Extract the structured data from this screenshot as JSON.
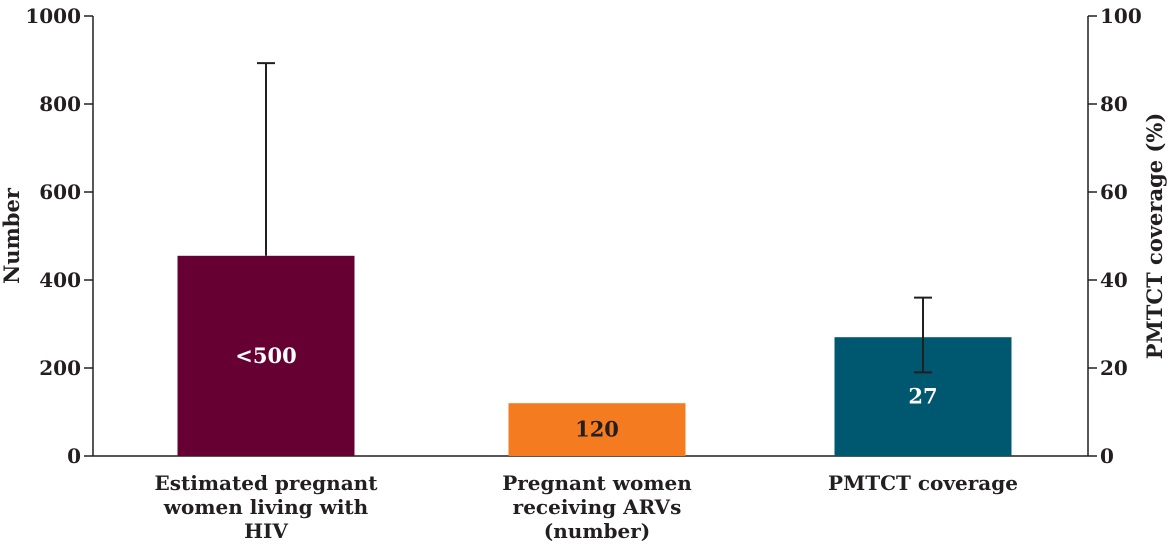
{
  "chart_data": {
    "type": "bar",
    "left_axis": {
      "label": "Number",
      "range": [
        0,
        1000
      ],
      "ticks": [
        "0",
        "200",
        "400",
        "600",
        "800",
        "1000"
      ]
    },
    "right_axis": {
      "label": "PMTCT coverage (%)",
      "range": [
        0,
        100
      ],
      "ticks": [
        "0",
        "20",
        "40",
        "60",
        "80",
        "100"
      ]
    },
    "grid": false,
    "bars": [
      {
        "category_lines": [
          "Estimated pregnant",
          "women living with",
          "HIV"
        ],
        "axis": "left",
        "value": 455,
        "label": "<500",
        "label_color": "#ffffff",
        "color": "#660033",
        "error_low": 455,
        "error_high": 893
      },
      {
        "category_lines": [
          "Pregnant women",
          "receiving ARVs",
          "(number)"
        ],
        "axis": "left",
        "value": 120,
        "label": "120",
        "label_color": "#231f20",
        "color": "#f47b20",
        "error_low": null,
        "error_high": null
      },
      {
        "category_lines": [
          "PMTCT coverage"
        ],
        "axis": "right",
        "value": 27,
        "label": "27",
        "label_color": "#ffffff",
        "color": "#005870",
        "error_low": 19,
        "error_high": 36
      }
    ]
  }
}
